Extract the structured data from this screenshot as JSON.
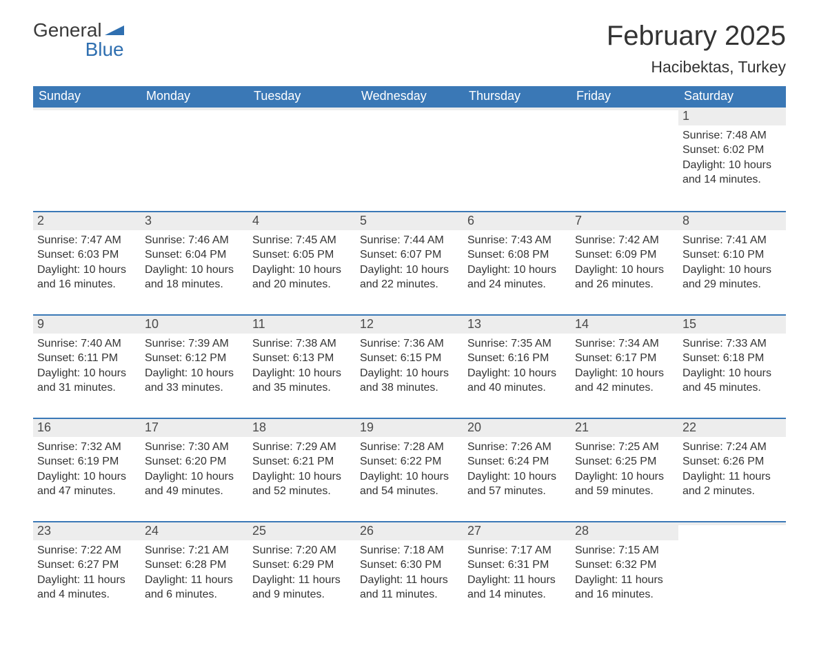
{
  "logo": {
    "line1": "General",
    "line2": "Blue",
    "text_color": "#3a3a3a",
    "accent_color": "#2f6fb0"
  },
  "header": {
    "month_title": "February 2025",
    "location": "Hacibektas, Turkey"
  },
  "styling": {
    "header_bg": "#3a78b6",
    "header_text": "#ffffff",
    "row_separator": "#3a78b6",
    "daynum_bg": "#ededed",
    "body_text": "#333333",
    "page_bg": "#ffffff",
    "font_family": "Segoe UI, Arial, sans-serif",
    "title_fontsize_pt": 30,
    "location_fontsize_pt": 17,
    "weekday_fontsize_pt": 14,
    "daynum_fontsize_pt": 14,
    "body_fontsize_pt": 12,
    "columns": 7,
    "rows": 5
  },
  "weekdays": [
    "Sunday",
    "Monday",
    "Tuesday",
    "Wednesday",
    "Thursday",
    "Friday",
    "Saturday"
  ],
  "weeks": [
    [
      {
        "day": "",
        "sunrise": "",
        "sunset": "",
        "daylight": ""
      },
      {
        "day": "",
        "sunrise": "",
        "sunset": "",
        "daylight": ""
      },
      {
        "day": "",
        "sunrise": "",
        "sunset": "",
        "daylight": ""
      },
      {
        "day": "",
        "sunrise": "",
        "sunset": "",
        "daylight": ""
      },
      {
        "day": "",
        "sunrise": "",
        "sunset": "",
        "daylight": ""
      },
      {
        "day": "",
        "sunrise": "",
        "sunset": "",
        "daylight": ""
      },
      {
        "day": "1",
        "sunrise": "Sunrise: 7:48 AM",
        "sunset": "Sunset: 6:02 PM",
        "daylight": "Daylight: 10 hours and 14 minutes."
      }
    ],
    [
      {
        "day": "2",
        "sunrise": "Sunrise: 7:47 AM",
        "sunset": "Sunset: 6:03 PM",
        "daylight": "Daylight: 10 hours and 16 minutes."
      },
      {
        "day": "3",
        "sunrise": "Sunrise: 7:46 AM",
        "sunset": "Sunset: 6:04 PM",
        "daylight": "Daylight: 10 hours and 18 minutes."
      },
      {
        "day": "4",
        "sunrise": "Sunrise: 7:45 AM",
        "sunset": "Sunset: 6:05 PM",
        "daylight": "Daylight: 10 hours and 20 minutes."
      },
      {
        "day": "5",
        "sunrise": "Sunrise: 7:44 AM",
        "sunset": "Sunset: 6:07 PM",
        "daylight": "Daylight: 10 hours and 22 minutes."
      },
      {
        "day": "6",
        "sunrise": "Sunrise: 7:43 AM",
        "sunset": "Sunset: 6:08 PM",
        "daylight": "Daylight: 10 hours and 24 minutes."
      },
      {
        "day": "7",
        "sunrise": "Sunrise: 7:42 AM",
        "sunset": "Sunset: 6:09 PM",
        "daylight": "Daylight: 10 hours and 26 minutes."
      },
      {
        "day": "8",
        "sunrise": "Sunrise: 7:41 AM",
        "sunset": "Sunset: 6:10 PM",
        "daylight": "Daylight: 10 hours and 29 minutes."
      }
    ],
    [
      {
        "day": "9",
        "sunrise": "Sunrise: 7:40 AM",
        "sunset": "Sunset: 6:11 PM",
        "daylight": "Daylight: 10 hours and 31 minutes."
      },
      {
        "day": "10",
        "sunrise": "Sunrise: 7:39 AM",
        "sunset": "Sunset: 6:12 PM",
        "daylight": "Daylight: 10 hours and 33 minutes."
      },
      {
        "day": "11",
        "sunrise": "Sunrise: 7:38 AM",
        "sunset": "Sunset: 6:13 PM",
        "daylight": "Daylight: 10 hours and 35 minutes."
      },
      {
        "day": "12",
        "sunrise": "Sunrise: 7:36 AM",
        "sunset": "Sunset: 6:15 PM",
        "daylight": "Daylight: 10 hours and 38 minutes."
      },
      {
        "day": "13",
        "sunrise": "Sunrise: 7:35 AM",
        "sunset": "Sunset: 6:16 PM",
        "daylight": "Daylight: 10 hours and 40 minutes."
      },
      {
        "day": "14",
        "sunrise": "Sunrise: 7:34 AM",
        "sunset": "Sunset: 6:17 PM",
        "daylight": "Daylight: 10 hours and 42 minutes."
      },
      {
        "day": "15",
        "sunrise": "Sunrise: 7:33 AM",
        "sunset": "Sunset: 6:18 PM",
        "daylight": "Daylight: 10 hours and 45 minutes."
      }
    ],
    [
      {
        "day": "16",
        "sunrise": "Sunrise: 7:32 AM",
        "sunset": "Sunset: 6:19 PM",
        "daylight": "Daylight: 10 hours and 47 minutes."
      },
      {
        "day": "17",
        "sunrise": "Sunrise: 7:30 AM",
        "sunset": "Sunset: 6:20 PM",
        "daylight": "Daylight: 10 hours and 49 minutes."
      },
      {
        "day": "18",
        "sunrise": "Sunrise: 7:29 AM",
        "sunset": "Sunset: 6:21 PM",
        "daylight": "Daylight: 10 hours and 52 minutes."
      },
      {
        "day": "19",
        "sunrise": "Sunrise: 7:28 AM",
        "sunset": "Sunset: 6:22 PM",
        "daylight": "Daylight: 10 hours and 54 minutes."
      },
      {
        "day": "20",
        "sunrise": "Sunrise: 7:26 AM",
        "sunset": "Sunset: 6:24 PM",
        "daylight": "Daylight: 10 hours and 57 minutes."
      },
      {
        "day": "21",
        "sunrise": "Sunrise: 7:25 AM",
        "sunset": "Sunset: 6:25 PM",
        "daylight": "Daylight: 10 hours and 59 minutes."
      },
      {
        "day": "22",
        "sunrise": "Sunrise: 7:24 AM",
        "sunset": "Sunset: 6:26 PM",
        "daylight": "Daylight: 11 hours and 2 minutes."
      }
    ],
    [
      {
        "day": "23",
        "sunrise": "Sunrise: 7:22 AM",
        "sunset": "Sunset: 6:27 PM",
        "daylight": "Daylight: 11 hours and 4 minutes."
      },
      {
        "day": "24",
        "sunrise": "Sunrise: 7:21 AM",
        "sunset": "Sunset: 6:28 PM",
        "daylight": "Daylight: 11 hours and 6 minutes."
      },
      {
        "day": "25",
        "sunrise": "Sunrise: 7:20 AM",
        "sunset": "Sunset: 6:29 PM",
        "daylight": "Daylight: 11 hours and 9 minutes."
      },
      {
        "day": "26",
        "sunrise": "Sunrise: 7:18 AM",
        "sunset": "Sunset: 6:30 PM",
        "daylight": "Daylight: 11 hours and 11 minutes."
      },
      {
        "day": "27",
        "sunrise": "Sunrise: 7:17 AM",
        "sunset": "Sunset: 6:31 PM",
        "daylight": "Daylight: 11 hours and 14 minutes."
      },
      {
        "day": "28",
        "sunrise": "Sunrise: 7:15 AM",
        "sunset": "Sunset: 6:32 PM",
        "daylight": "Daylight: 11 hours and 16 minutes."
      },
      {
        "day": "",
        "sunrise": "",
        "sunset": "",
        "daylight": ""
      }
    ]
  ]
}
